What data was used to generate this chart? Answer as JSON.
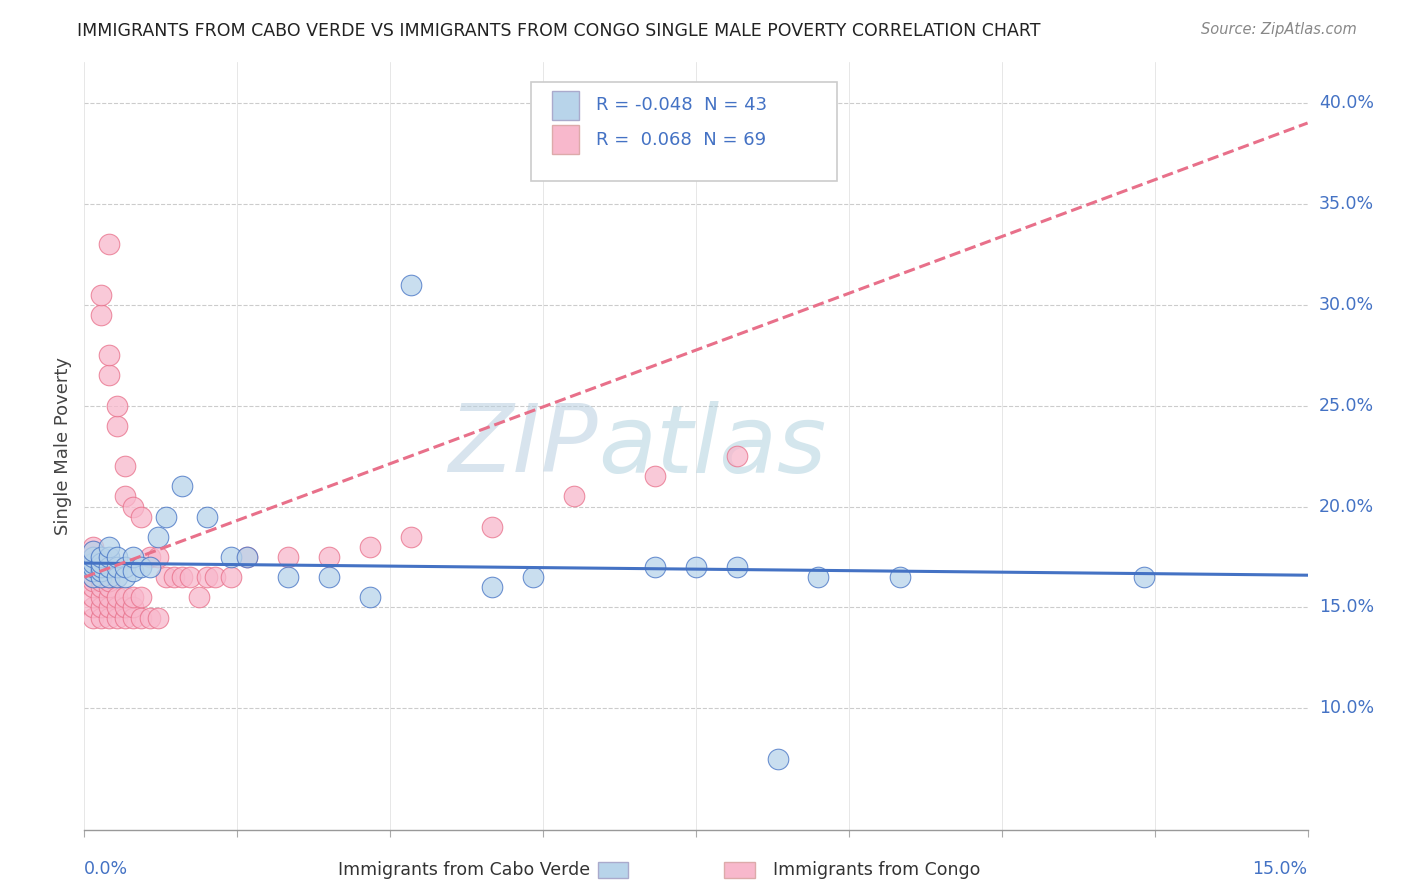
{
  "title": "IMMIGRANTS FROM CABO VERDE VS IMMIGRANTS FROM CONGO SINGLE MALE POVERTY CORRELATION CHART",
  "source": "Source: ZipAtlas.com",
  "ylabel": "Single Male Poverty",
  "r_cabo": -0.048,
  "n_cabo": 43,
  "r_congo": 0.068,
  "n_congo": 69,
  "color_cabo": "#b8d4ea",
  "color_congo": "#f8b8cc",
  "trendline_cabo": "#4472c4",
  "trendline_congo": "#e8708a",
  "watermark_color": "#ccdde8",
  "xlim": [
    0.0,
    0.15
  ],
  "ylim": [
    0.04,
    0.42
  ],
  "yticks": [
    0.1,
    0.15,
    0.2,
    0.25,
    0.3,
    0.35,
    0.4
  ],
  "ytick_labels": [
    "10.0%",
    "15.0%",
    "20.0%",
    "25.0%",
    "30.0%",
    "35.0%",
    "40.0%"
  ],
  "cabo_x": [
    0.001,
    0.001,
    0.001,
    0.001,
    0.001,
    0.001,
    0.002,
    0.002,
    0.002,
    0.002,
    0.002,
    0.003,
    0.003,
    0.003,
    0.003,
    0.004,
    0.004,
    0.004,
    0.005,
    0.005,
    0.006,
    0.006,
    0.007,
    0.008,
    0.009,
    0.01,
    0.012,
    0.015,
    0.018,
    0.02,
    0.025,
    0.03,
    0.035,
    0.04,
    0.05,
    0.055,
    0.07,
    0.075,
    0.08,
    0.085,
    0.09,
    0.1,
    0.13
  ],
  "cabo_y": [
    0.165,
    0.168,
    0.17,
    0.172,
    0.175,
    0.178,
    0.165,
    0.168,
    0.17,
    0.172,
    0.175,
    0.165,
    0.17,
    0.175,
    0.18,
    0.165,
    0.17,
    0.175,
    0.165,
    0.17,
    0.168,
    0.175,
    0.17,
    0.17,
    0.185,
    0.195,
    0.21,
    0.195,
    0.175,
    0.175,
    0.165,
    0.165,
    0.155,
    0.31,
    0.16,
    0.165,
    0.17,
    0.17,
    0.17,
    0.075,
    0.165,
    0.165,
    0.165
  ],
  "congo_x": [
    0.001,
    0.001,
    0.001,
    0.001,
    0.001,
    0.001,
    0.001,
    0.001,
    0.001,
    0.001,
    0.001,
    0.001,
    0.002,
    0.002,
    0.002,
    0.002,
    0.002,
    0.002,
    0.002,
    0.002,
    0.002,
    0.002,
    0.003,
    0.003,
    0.003,
    0.003,
    0.003,
    0.003,
    0.003,
    0.003,
    0.003,
    0.004,
    0.004,
    0.004,
    0.004,
    0.004,
    0.005,
    0.005,
    0.005,
    0.005,
    0.005,
    0.006,
    0.006,
    0.006,
    0.006,
    0.007,
    0.007,
    0.007,
    0.008,
    0.008,
    0.009,
    0.009,
    0.01,
    0.011,
    0.012,
    0.013,
    0.014,
    0.015,
    0.016,
    0.018,
    0.02,
    0.025,
    0.03,
    0.035,
    0.04,
    0.05,
    0.06,
    0.07,
    0.08
  ],
  "congo_y": [
    0.145,
    0.15,
    0.155,
    0.16,
    0.163,
    0.165,
    0.168,
    0.17,
    0.173,
    0.175,
    0.178,
    0.18,
    0.145,
    0.15,
    0.155,
    0.16,
    0.163,
    0.165,
    0.168,
    0.17,
    0.295,
    0.305,
    0.145,
    0.15,
    0.155,
    0.16,
    0.163,
    0.165,
    0.265,
    0.275,
    0.33,
    0.145,
    0.15,
    0.155,
    0.24,
    0.25,
    0.145,
    0.15,
    0.155,
    0.205,
    0.22,
    0.145,
    0.15,
    0.155,
    0.2,
    0.145,
    0.155,
    0.195,
    0.145,
    0.175,
    0.145,
    0.175,
    0.165,
    0.165,
    0.165,
    0.165,
    0.155,
    0.165,
    0.165,
    0.165,
    0.175,
    0.175,
    0.175,
    0.18,
    0.185,
    0.19,
    0.205,
    0.215,
    0.225
  ]
}
